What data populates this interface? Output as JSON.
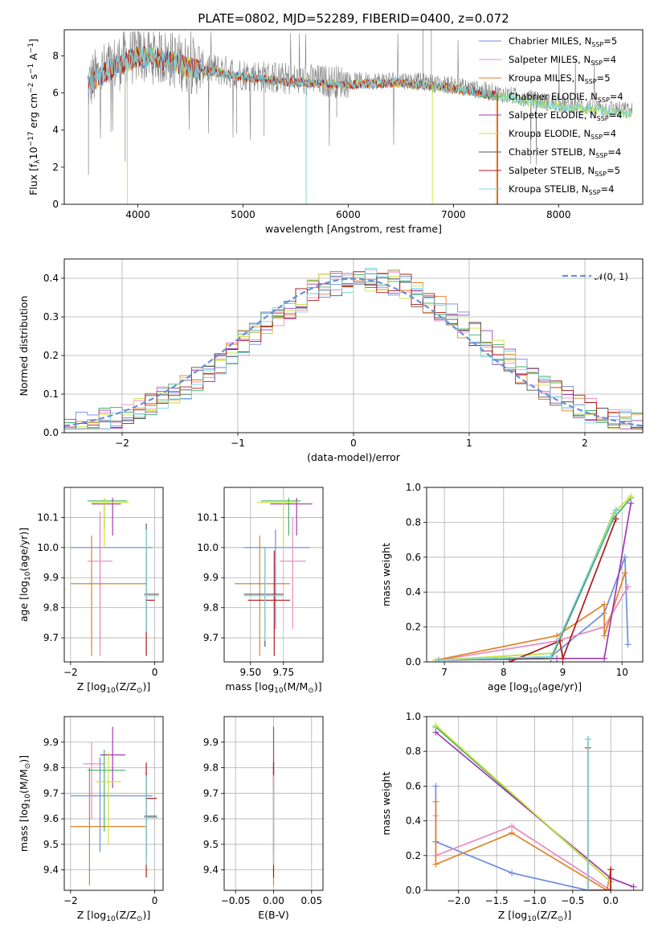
{
  "figure": {
    "title": "PLATE=0802, MJD=52289, FIBERID=0400, z=0.072"
  },
  "colors": {
    "Chabrier MILES": "#6a8ee0",
    "Salpeter MILES": "#e88cc0",
    "Kroupa MILES": "#e0822a",
    "Chabrier ELODIE": "#45b06a",
    "Salpeter ELODIE": "#9e3bb0",
    "Kroupa ELODIE": "#cde33a",
    "Chabrier STELIB": "#555555",
    "Salpeter STELIB": "#b0181c",
    "Kroupa STELIB": "#78d8e0"
  },
  "chart_data": [
    {
      "id": "spectrum",
      "type": "line",
      "xlabel": "wavelength [Angstrom, rest frame]",
      "ylabel": "Flux [f",
      "ylabel_parts": {
        "lambda": "λ",
        "ten": "10",
        "exp17": "−17",
        "unit": " erg cm",
        "exp2": "−2",
        "s": " s",
        "exp1": "−1",
        "A": " A",
        "close": "]"
      },
      "xlim": [
        3300,
        8800
      ],
      "ylim": [
        0,
        9.4
      ],
      "xticks": [
        4000,
        5000,
        6000,
        7000,
        8000
      ],
      "yticks": [
        0,
        2,
        4,
        6,
        8
      ],
      "grid": false,
      "legend_position": "upper-right",
      "continuum": {
        "x": [
          3500,
          3600,
          3800,
          4000,
          4200,
          4500,
          5000,
          5500,
          6000,
          6500,
          7000,
          7500,
          8000,
          8400,
          8700
        ],
        "y": [
          6.2,
          6.9,
          7.6,
          8.1,
          8.0,
          7.5,
          7.0,
          6.7,
          6.6,
          6.7,
          6.4,
          5.9,
          5.4,
          5.2,
          5.0
        ]
      },
      "legend": [
        {
          "name": "Chabrier MILES",
          "n": "5"
        },
        {
          "name": "Salpeter MILES",
          "n": "4"
        },
        {
          "name": "Kroupa MILES",
          "n": "5"
        },
        {
          "name": "Chabrier ELODIE",
          "n": "4"
        },
        {
          "name": "Salpeter ELODIE",
          "n": "4"
        },
        {
          "name": "Kroupa ELODIE",
          "n": "4"
        },
        {
          "name": "Chabrier STELIB",
          "n": "4"
        },
        {
          "name": "Salpeter STELIB",
          "n": "5"
        },
        {
          "name": "Kroupa STELIB",
          "n": "4"
        }
      ],
      "legend_n_label": ", N",
      "legend_sub": "SSP",
      "legend_eq": "="
    },
    {
      "id": "residuals",
      "type": "histogram",
      "xlabel": "(data-model)/error",
      "ylabel": "Normed distribution",
      "xlim": [
        -2.5,
        2.5
      ],
      "ylim": [
        0,
        0.45
      ],
      "xticks": [
        -2,
        -1,
        0,
        1,
        2
      ],
      "yticks": [
        0,
        0.1,
        0.2,
        0.3,
        0.4
      ],
      "grid": true,
      "gaussian_label": "𝒩(0, 1)",
      "bin_width": 0.1
    },
    {
      "id": "age-vs-z",
      "type": "errorbar",
      "xlabel": "Z [log",
      "xlabel_sub": "10",
      "xlabel_rest": "(Z/Z",
      "xlabel_sun": "⊙",
      "xlabel_close": ")]",
      "ylabel": "age  [log",
      "ylabel_sub": "10",
      "ylabel_rest": "(age/yr)]",
      "xlim": [
        -2.15,
        0.2
      ],
      "ylim": [
        9.62,
        10.2
      ],
      "xticks": [
        -2,
        0
      ],
      "yticks": [
        9.7,
        9.8,
        9.9,
        10.0,
        10.1
      ],
      "grid": true,
      "points": [
        {
          "m": "Chabrier MILES",
          "x": -1.3,
          "y": 10.0,
          "xlo": -2.0,
          "xhi": -0.05,
          "ylo": 9.68,
          "yhi": 10.1
        },
        {
          "m": "Salpeter MILES",
          "x": -1.3,
          "y": 9.955,
          "xlo": -1.6,
          "xhi": -1.0,
          "ylo": 9.64,
          "yhi": 10.12
        },
        {
          "m": "Kroupa MILES",
          "x": -1.5,
          "y": 9.88,
          "xlo": -2.0,
          "xhi": -0.2,
          "ylo": 9.64,
          "yhi": 10.04
        },
        {
          "m": "Chabrier ELODIE",
          "x": -1.2,
          "y": 10.155,
          "xlo": -1.6,
          "xhi": -0.65,
          "ylo": 10.06,
          "yhi": 10.165
        },
        {
          "m": "Salpeter ELODIE",
          "x": -1.0,
          "y": 10.145,
          "xlo": -1.5,
          "xhi": -0.8,
          "ylo": 10.04,
          "yhi": 10.165
        },
        {
          "m": "Kroupa ELODIE",
          "x": -1.2,
          "y": 10.15,
          "xlo": -1.5,
          "xhi": -0.6,
          "ylo": 10.0,
          "yhi": 10.165
        },
        {
          "m": "Chabrier STELIB",
          "x": -0.2,
          "y": 9.845,
          "xlo": -0.25,
          "xhi": 0.1,
          "ylo": 9.72,
          "yhi": 10.08
        },
        {
          "m": "Salpeter STELIB",
          "x": -0.2,
          "y": 9.825,
          "xlo": -0.22,
          "xhi": 0.0,
          "ylo": 9.64,
          "yhi": 10.0
        },
        {
          "m": "Kroupa STELIB",
          "x": -0.2,
          "y": 9.84,
          "xlo": -0.25,
          "xhi": 0.1,
          "ylo": 9.72,
          "yhi": 10.06
        }
      ]
    },
    {
      "id": "age-vs-mass",
      "type": "errorbar",
      "xlabel": "mass [log",
      "xlabel_sub": "10",
      "xlabel_rest": "(M/M",
      "xlabel_sun": "⊙",
      "xlabel_close": ")]",
      "xlim": [
        9.3,
        10.05
      ],
      "ylim": [
        9.62,
        10.2
      ],
      "xticks": [
        9.5,
        9.75
      ],
      "xticklabels": [
        "9.50",
        "9.75"
      ],
      "yticks": [
        9.7,
        9.8,
        9.9,
        10.0,
        10.1
      ],
      "grid": true,
      "points": [
        {
          "m": "Chabrier MILES",
          "x": 9.69,
          "y": 10.0,
          "xlo": 9.45,
          "xhi": 9.95,
          "ylo": 9.73,
          "yhi": 10.06
        },
        {
          "m": "Salpeter MILES",
          "x": 9.82,
          "y": 9.955,
          "xlo": 9.72,
          "xhi": 9.92,
          "ylo": 9.73,
          "yhi": 10.1
        },
        {
          "m": "Kroupa MILES",
          "x": 9.57,
          "y": 9.88,
          "xlo": 9.38,
          "xhi": 9.8,
          "ylo": 9.64,
          "yhi": 10.04
        },
        {
          "m": "Chabrier ELODIE",
          "x": 9.79,
          "y": 10.155,
          "xlo": 9.58,
          "xhi": 9.88,
          "ylo": 10.04,
          "yhi": 10.165
        },
        {
          "m": "Salpeter ELODIE",
          "x": 9.85,
          "y": 10.145,
          "xlo": 9.65,
          "xhi": 9.97,
          "ylo": 10.04,
          "yhi": 10.165
        },
        {
          "m": "Kroupa ELODIE",
          "x": 9.75,
          "y": 10.15,
          "xlo": 9.55,
          "xhi": 9.85,
          "ylo": 10.0,
          "yhi": 10.165
        },
        {
          "m": "Chabrier STELIB",
          "x": 9.61,
          "y": 9.845,
          "xlo": 9.45,
          "xhi": 9.75,
          "ylo": 9.67,
          "yhi": 10.0
        },
        {
          "m": "Salpeter STELIB",
          "x": 9.68,
          "y": 9.825,
          "xlo": 9.48,
          "xhi": 9.8,
          "ylo": 9.64,
          "yhi": 9.99
        },
        {
          "m": "Kroupa STELIB",
          "x": 9.61,
          "y": 9.84,
          "xlo": 9.45,
          "xhi": 9.75,
          "ylo": 9.69,
          "yhi": 10.0
        }
      ]
    },
    {
      "id": "weight-vs-age",
      "type": "line",
      "xlabel": "age  [log",
      "xlabel_sub": "10",
      "xlabel_rest": "(age/yr)]",
      "ylabel": "mass weight",
      "xlim": [
        6.7,
        10.35
      ],
      "ylim": [
        0,
        1.0
      ],
      "xticks": [
        7,
        8,
        9,
        10
      ],
      "yticks": [
        0,
        0.2,
        0.4,
        0.6,
        0.8,
        1.0
      ],
      "grid": true,
      "series": [
        {
          "m": "Chabrier MILES",
          "x": [
            6.9,
            8.8,
            9.7,
            10.05,
            10.1
          ],
          "y": [
            0.01,
            0.03,
            0.28,
            0.6,
            0.1
          ]
        },
        {
          "m": "Salpeter MILES",
          "x": [
            6.9,
            8.9,
            9.7,
            10.1
          ],
          "y": [
            0.01,
            0.12,
            0.2,
            0.43
          ]
        },
        {
          "m": "Kroupa MILES",
          "x": [
            6.85,
            8.9,
            9.7,
            9.7,
            10.05
          ],
          "y": [
            0.01,
            0.15,
            0.33,
            0.15,
            0.51
          ]
        },
        {
          "m": "Chabrier ELODIE",
          "x": [
            6.9,
            8.85,
            9.85,
            10.15
          ],
          "y": [
            0.01,
            0.05,
            0.82,
            0.94
          ]
        },
        {
          "m": "Salpeter ELODIE",
          "x": [
            6.9,
            8.9,
            9.7,
            10.15
          ],
          "y": [
            0.01,
            0.02,
            0.02,
            0.91
          ]
        },
        {
          "m": "Kroupa ELODIE",
          "x": [
            6.85,
            8.85,
            9.85,
            10.15
          ],
          "y": [
            0.01,
            0.05,
            0.85,
            0.95
          ]
        },
        {
          "m": "Chabrier STELIB",
          "x": [
            6.9,
            8.8,
            9.9
          ],
          "y": [
            0.01,
            0.02,
            0.87
          ]
        },
        {
          "m": "Salpeter STELIB",
          "x": [
            8.1,
            8.95,
            9.0,
            9.9
          ],
          "y": [
            0.0,
            0.12,
            0.02,
            0.82
          ]
        },
        {
          "m": "Kroupa STELIB",
          "x": [
            6.9,
            8.8,
            9.9
          ],
          "y": [
            0.01,
            0.03,
            0.87
          ]
        }
      ]
    },
    {
      "id": "mass-vs-z",
      "type": "errorbar",
      "xlabel": "Z [log",
      "xlabel_sub": "10",
      "xlabel_rest": "(Z/Z",
      "xlabel_sun": "⊙",
      "xlabel_close": ")]",
      "ylabel": "mass [log",
      "ylabel_sub": "10",
      "ylabel_rest": "(M/M",
      "ylabel_sun": "⊙",
      "ylabel_close": ")]",
      "xlim": [
        -2.15,
        0.2
      ],
      "ylim": [
        9.32,
        10.0
      ],
      "xticks": [
        -2,
        0
      ],
      "yticks": [
        9.4,
        9.5,
        9.6,
        9.7,
        9.8,
        9.9
      ],
      "grid": true,
      "points": [
        {
          "m": "Chabrier MILES",
          "x": -1.3,
          "y": 9.69,
          "xlo": -2.0,
          "xhi": -0.05,
          "ylo": 9.47,
          "yhi": 9.84
        },
        {
          "m": "Salpeter MILES",
          "x": -1.5,
          "y": 9.815,
          "xlo": -1.7,
          "xhi": -1.2,
          "ylo": 9.6,
          "yhi": 9.9
        },
        {
          "m": "Kroupa MILES",
          "x": -1.55,
          "y": 9.57,
          "xlo": -2.0,
          "xhi": -0.2,
          "ylo": 9.34,
          "yhi": 9.8
        },
        {
          "m": "Chabrier ELODIE",
          "x": -1.2,
          "y": 9.79,
          "xlo": -1.6,
          "xhi": -0.7,
          "ylo": 9.55,
          "yhi": 9.87
        },
        {
          "m": "Salpeter ELODIE",
          "x": -1.0,
          "y": 9.85,
          "xlo": -1.3,
          "xhi": -0.7,
          "ylo": 9.72,
          "yhi": 9.96
        },
        {
          "m": "Kroupa ELODIE",
          "x": -1.1,
          "y": 9.745,
          "xlo": -1.4,
          "xhi": -0.8,
          "ylo": 9.5,
          "yhi": 9.86
        },
        {
          "m": "Chabrier STELIB",
          "x": -0.2,
          "y": 9.61,
          "xlo": -0.25,
          "xhi": 0.05,
          "ylo": 9.45,
          "yhi": 9.78
        },
        {
          "m": "Salpeter STELIB",
          "x": -0.2,
          "y": 9.68,
          "xlo": -0.22,
          "xhi": 0.05,
          "ylo": 9.37,
          "yhi": 9.82
        },
        {
          "m": "Kroupa STELIB",
          "x": -0.2,
          "y": 9.605,
          "xlo": -0.25,
          "xhi": 0.08,
          "ylo": 9.42,
          "yhi": 9.77
        }
      ]
    },
    {
      "id": "mass-vs-ebv",
      "type": "errorbar",
      "xlabel": "E(B-V)",
      "xlim": [
        -0.065,
        0.065
      ],
      "ylim": [
        9.32,
        10.0
      ],
      "xticks": [
        -0.05,
        0,
        0.05
      ],
      "xticklabels": [
        "−0.05",
        "0.00",
        "0.05"
      ],
      "yticks": [
        9.4,
        9.5,
        9.6,
        9.7,
        9.8,
        9.9
      ],
      "grid": true,
      "points": [
        {
          "m": "Chabrier MILES",
          "x": 0,
          "y": 9.69,
          "ylo": 9.47,
          "yhi": 9.84
        },
        {
          "m": "Kroupa MILES",
          "x": 0,
          "y": 9.57,
          "ylo": 9.34,
          "yhi": 9.8
        },
        {
          "m": "Salpeter ELODIE",
          "x": 0,
          "y": 9.85,
          "ylo": 9.72,
          "yhi": 9.96
        },
        {
          "m": "Salpeter STELIB",
          "x": 0,
          "y": 9.68,
          "ylo": 9.37,
          "yhi": 9.82
        },
        {
          "m": "Kroupa STELIB",
          "x": 0,
          "y": 9.605,
          "ylo": 9.42,
          "yhi": 9.77
        }
      ]
    },
    {
      "id": "weight-vs-z",
      "type": "line",
      "xlabel": "Z [log",
      "xlabel_sub": "10",
      "xlabel_rest": "(Z/Z",
      "xlabel_sun": "⊙",
      "xlabel_close": ")]",
      "ylabel": "mass weight",
      "xlim": [
        -2.42,
        0.42
      ],
      "ylim": [
        0,
        1.0
      ],
      "xticks": [
        -2.0,
        -1.5,
        -1.0,
        -0.5,
        0.0
      ],
      "xticklabels": [
        "−2.0",
        "−1.5",
        "−1.0",
        "−0.5",
        "0.0"
      ],
      "yticks": [
        0,
        0.2,
        0.4,
        0.6,
        0.8,
        1.0
      ],
      "grid": true,
      "series": [
        {
          "m": "Chabrier MILES",
          "x": [
            -2.3,
            -2.3,
            -1.3,
            -0.3,
            0.0
          ],
          "y": [
            0.6,
            0.28,
            0.1,
            0.0,
            0.0
          ]
        },
        {
          "m": "Salpeter MILES",
          "x": [
            -2.3,
            -2.3,
            -1.3,
            0.0
          ],
          "y": [
            0.43,
            0.2,
            0.37,
            0.0
          ]
        },
        {
          "m": "Kroupa MILES",
          "x": [
            -2.3,
            -2.3,
            -1.3,
            -0.05,
            0.0
          ],
          "y": [
            0.51,
            0.15,
            0.33,
            0.0,
            0.12
          ]
        },
        {
          "m": "Chabrier ELODIE",
          "x": [
            -2.3,
            0.0,
            0.0
          ],
          "y": [
            0.94,
            0.05,
            0.0
          ]
        },
        {
          "m": "Salpeter ELODIE",
          "x": [
            -2.3,
            0.0,
            0.3
          ],
          "y": [
            0.91,
            0.07,
            0.02
          ]
        },
        {
          "m": "Kroupa ELODIE",
          "x": [
            -2.3,
            0.0
          ],
          "y": [
            0.95,
            0.05
          ]
        },
        {
          "m": "Chabrier STELIB",
          "x": [
            -0.3,
            -0.3
          ],
          "y": [
            0.87,
            0.0
          ]
        },
        {
          "m": "Salpeter STELIB",
          "x": [
            -0.3,
            -0.3,
            0.0,
            0.0
          ],
          "y": [
            0.82,
            0.0,
            0.0,
            0.12
          ]
        },
        {
          "m": "Kroupa STELIB",
          "x": [
            -0.3,
            -0.3
          ],
          "y": [
            0.87,
            0.0
          ]
        }
      ]
    }
  ]
}
